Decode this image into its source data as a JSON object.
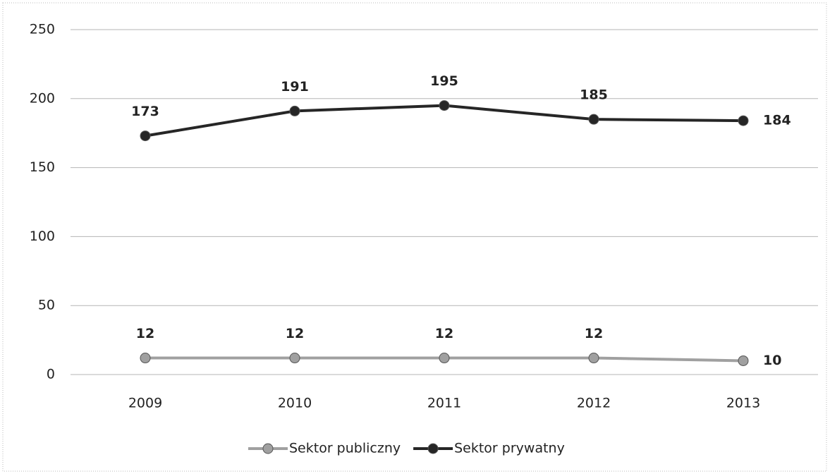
{
  "chart_data": {
    "type": "line",
    "categories": [
      "2009",
      "2010",
      "2011",
      "2012",
      "2013"
    ],
    "series": [
      {
        "name": "Sektor publiczny",
        "color": "#a0a0a0",
        "values": [
          12,
          12,
          12,
          12,
          10
        ]
      },
      {
        "name": "Sektor prywatny",
        "color": "#262626",
        "values": [
          173,
          191,
          195,
          185,
          184
        ]
      }
    ],
    "ylim": [
      0,
      250
    ],
    "yticks": [
      0,
      50,
      100,
      150,
      200,
      250
    ],
    "grid": true,
    "legend": "bottom"
  }
}
